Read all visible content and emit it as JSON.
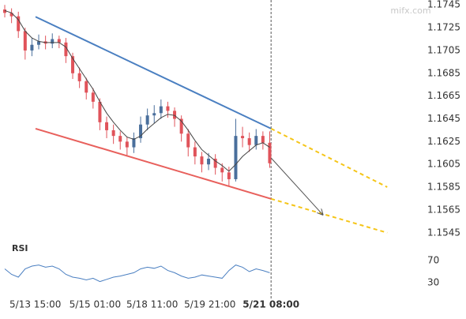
{
  "watermark": "mifx.com",
  "chart_data": [
    {
      "type": "candlestick",
      "up_color": "#4a6f9c",
      "down_color": "#e0535a",
      "xlim": [
        -0.7,
        61.5
      ],
      "ylim": [
        1.154,
        1.175
      ],
      "yticks": [
        1.1745,
        1.1725,
        1.1705,
        1.1685,
        1.1665,
        1.1645,
        1.1625,
        1.1605,
        1.1585,
        1.1565,
        1.1545
      ],
      "xticks": [
        {
          "value": 4.5,
          "label": "5/13 15:00"
        },
        {
          "value": 13.3,
          "label": "5/15 01:00"
        },
        {
          "value": 21.7,
          "label": "5/18 11:00"
        },
        {
          "value": 30.2,
          "label": "5/19 21:00"
        },
        {
          "value": 39.2,
          "label": "5/21 08:00"
        }
      ],
      "highlight_xtick": 4,
      "open": [
        1.1741,
        1.1738,
        1.1735,
        1.1722,
        1.1705,
        1.171,
        1.1713,
        1.1711,
        1.1715,
        1.1712,
        1.17,
        1.1685,
        1.1678,
        1.1668,
        1.166,
        1.1642,
        1.1635,
        1.163,
        1.1625,
        1.162,
        1.1628,
        1.164,
        1.1648,
        1.165,
        1.1656,
        1.1652,
        1.1645,
        1.1632,
        1.162,
        1.1612,
        1.1605,
        1.161,
        1.1602,
        1.1598,
        1.1592,
        1.163,
        1.1628,
        1.1622,
        1.163,
        1.1624
      ],
      "high": [
        1.1745,
        1.1742,
        1.1739,
        1.1725,
        1.1716,
        1.1719,
        1.1718,
        1.172,
        1.1718,
        1.1716,
        1.1703,
        1.169,
        1.1681,
        1.1672,
        1.1663,
        1.1647,
        1.164,
        1.1634,
        1.1629,
        1.1633,
        1.1647,
        1.1654,
        1.1657,
        1.1662,
        1.166,
        1.1655,
        1.1648,
        1.1636,
        1.1625,
        1.1616,
        1.1615,
        1.1614,
        1.1606,
        1.1603,
        1.1645,
        1.1638,
        1.1633,
        1.1636,
        1.1634,
        1.1634
      ],
      "low": [
        1.1734,
        1.1729,
        1.1716,
        1.1697,
        1.17,
        1.1706,
        1.1706,
        1.1707,
        1.1707,
        1.1694,
        1.168,
        1.1672,
        1.1662,
        1.1654,
        1.1635,
        1.1628,
        1.1623,
        1.1618,
        1.1612,
        1.1615,
        1.1624,
        1.1635,
        1.1641,
        1.1645,
        1.1646,
        1.1638,
        1.1625,
        1.1612,
        1.1605,
        1.1598,
        1.16,
        1.1596,
        1.159,
        1.1586,
        1.159,
        1.162,
        1.1616,
        1.1618,
        1.1618,
        1.1602
      ],
      "close": [
        1.1738,
        1.1735,
        1.1722,
        1.1705,
        1.171,
        1.1713,
        1.1711,
        1.1715,
        1.1712,
        1.17,
        1.1685,
        1.1678,
        1.1668,
        1.166,
        1.1642,
        1.1635,
        1.163,
        1.1625,
        1.162,
        1.1628,
        1.164,
        1.1648,
        1.165,
        1.1656,
        1.1652,
        1.1645,
        1.1632,
        1.162,
        1.1612,
        1.1605,
        1.161,
        1.1602,
        1.1598,
        1.1592,
        1.163,
        1.1628,
        1.1622,
        1.163,
        1.1624,
        1.1606
      ],
      "ma": {
        "color": "#444444",
        "values": [
          1.174,
          1.1738,
          1.1732,
          1.1722,
          1.1716,
          1.1713,
          1.1712,
          1.1712,
          1.1712,
          1.1708,
          1.1698,
          1.1689,
          1.168,
          1.1671,
          1.166,
          1.165,
          1.1642,
          1.1635,
          1.1629,
          1.1627,
          1.163,
          1.1636,
          1.1641,
          1.1646,
          1.1649,
          1.1648,
          1.1643,
          1.1635,
          1.1626,
          1.1618,
          1.1613,
          1.1608,
          1.1604,
          1.1599,
          1.1605,
          1.1612,
          1.1617,
          1.1622,
          1.1624,
          1.162
        ]
      },
      "trendlines": [
        {
          "color": "#4a7fc1",
          "dashed": false,
          "x": [
            4.53,
            39.2
          ],
          "y": [
            1.17346,
            1.16364
          ]
        },
        {
          "color": "#e8605c",
          "dashed": false,
          "x": [
            4.53,
            39.2
          ],
          "y": [
            1.16364,
            1.15748
          ]
        },
        {
          "color": "#f5c518",
          "dashed": true,
          "x": [
            39.2,
            56.3
          ],
          "y": [
            1.16364,
            1.15851
          ]
        },
        {
          "color": "#f5c518",
          "dashed": true,
          "x": [
            39.2,
            56.3
          ],
          "y": [
            1.15748,
            1.1545
          ]
        }
      ],
      "arrow": {
        "color": "#555555",
        "x": [
          39.2,
          46.8
        ],
        "y": [
          1.16107,
          1.15609
        ]
      },
      "marker_line": {
        "x": 39.2,
        "color": "#555555"
      }
    },
    {
      "type": "line",
      "title": "RSI",
      "xlim": [
        -0.7,
        61.5
      ],
      "ylim": [
        0,
        100
      ],
      "yticks": [
        70,
        30
      ],
      "series": [
        {
          "color": "#4a7fc1",
          "values": [
            55,
            45,
            40,
            55,
            60,
            62,
            58,
            60,
            55,
            45,
            40,
            38,
            35,
            38,
            32,
            36,
            40,
            42,
            45,
            48,
            55,
            58,
            56,
            60,
            52,
            48,
            42,
            38,
            40,
            44,
            42,
            40,
            38,
            52,
            62,
            58,
            50,
            55,
            52,
            48
          ]
        }
      ]
    }
  ]
}
